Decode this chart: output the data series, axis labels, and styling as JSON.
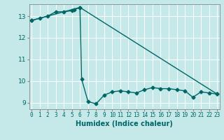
{
  "xlabel": "Humidex (Indice chaleur)",
  "ylabel": "",
  "bg_color": "#c5e8e8",
  "grid_color": "#ffffff",
  "line_color": "#006666",
  "series1_x": [
    0,
    1,
    2,
    3,
    4,
    5,
    5.3,
    6,
    6.2,
    7,
    8,
    9,
    10,
    11,
    12,
    13,
    14,
    15,
    16,
    17,
    18,
    19,
    20,
    21,
    22,
    23
  ],
  "series1_y": [
    12.8,
    12.9,
    13.0,
    13.2,
    13.2,
    13.25,
    13.3,
    13.4,
    10.1,
    9.05,
    8.95,
    9.35,
    9.5,
    9.55,
    9.5,
    9.45,
    9.6,
    9.7,
    9.65,
    9.65,
    9.6,
    9.55,
    9.25,
    9.5,
    9.45,
    9.4
  ],
  "series2_x": [
    0,
    6,
    23
  ],
  "series2_y": [
    12.8,
    13.4,
    9.4
  ],
  "xlim_min": -0.3,
  "xlim_max": 23.3,
  "ylim_min": 8.7,
  "ylim_max": 13.55,
  "yticks": [
    9,
    10,
    11,
    12,
    13
  ],
  "xticks": [
    0,
    1,
    2,
    3,
    4,
    5,
    6,
    7,
    8,
    9,
    10,
    11,
    12,
    13,
    14,
    15,
    16,
    17,
    18,
    19,
    20,
    21,
    22,
    23
  ],
  "xtick_labels": [
    "0",
    "1",
    "2",
    "3",
    "4",
    "5",
    "6",
    "7",
    "8",
    "9",
    "10",
    "11",
    "12",
    "13",
    "14",
    "15",
    "16",
    "17",
    "18",
    "19",
    "20",
    "21",
    "22",
    "23"
  ],
  "marker": "D",
  "markersize": 2.5,
  "linewidth": 1.0,
  "tick_fontsize": 5.5,
  "xlabel_fontsize": 7
}
